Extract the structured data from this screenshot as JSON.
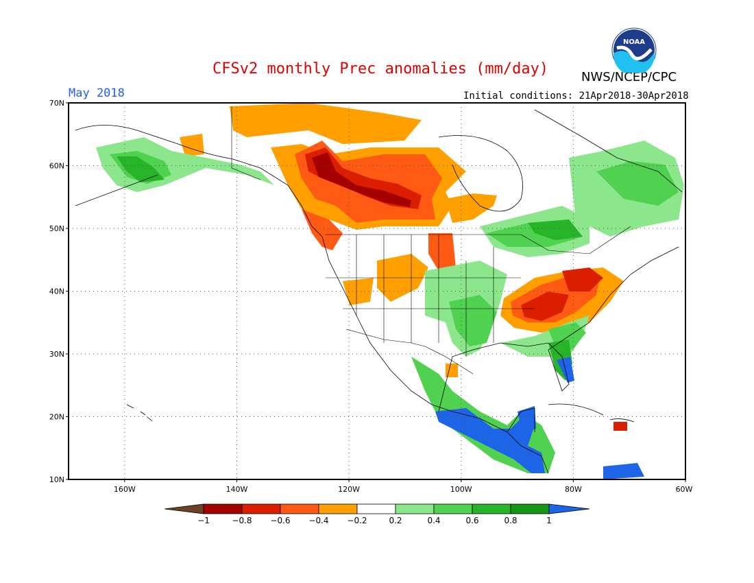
{
  "header": {
    "title": "CFSv2 monthly Prec anomalies (mm/day)",
    "period": "May 2018",
    "initial_conditions": "Initial conditions: 21Apr2018-30Apr2018",
    "agency": "NWS/NCEP/CPC",
    "logo_text": "NOAA"
  },
  "axes": {
    "lat_labels": [
      "70N",
      "60N",
      "50N",
      "40N",
      "30N",
      "20N",
      "10N"
    ],
    "lon_labels": [
      "160W",
      "140W",
      "120W",
      "100W",
      "80W",
      "60W"
    ]
  },
  "colorbar": {
    "labels": [
      "−1",
      "−0.8",
      "−0.6",
      "−0.4",
      "−0.2",
      "0.2",
      "0.4",
      "0.6",
      "0.8",
      "1"
    ],
    "colors": {
      "lt_neg1": "#6b4226",
      "neg1_neg08": "#a50000",
      "neg08_neg06": "#dc1e00",
      "neg06_neg04": "#ff5a14",
      "neg04_neg02": "#ffa000",
      "neutral": "#ffffff",
      "p02_p04": "#8ce68c",
      "p04_p06": "#50d250",
      "p06_p08": "#28b428",
      "p08_p1": "#149614",
      "gt_1": "#1e64e6"
    }
  },
  "map": {
    "extent": {
      "lon_min": -170,
      "lon_max": -60,
      "lat_min": 10,
      "lat_max": 70
    },
    "anomaly_regions": [
      {
        "region": "Western Canada / Alberta-Saskatchewan",
        "anomaly_mm_day": -0.9
      },
      {
        "region": "Northern British Columbia",
        "anomaly_mm_day": -0.7
      },
      {
        "region": "Yukon / Northwest Territories",
        "anomaly_mm_day": -0.3
      },
      {
        "region": "Ohio Valley / Tennessee",
        "anomaly_mm_day": -0.7
      },
      {
        "region": "Mid-Atlantic / Pennsylvania",
        "anomaly_mm_day": -0.6
      },
      {
        "region": "Pacific Northwest coast",
        "anomaly_mm_day": -0.5
      },
      {
        "region": "Intermountain West",
        "anomaly_mm_day": -0.3
      },
      {
        "region": "Alaska Peninsula",
        "anomaly_mm_day": 0.6
      },
      {
        "region": "Quebec / Labrador",
        "anomaly_mm_day": 0.4
      },
      {
        "region": "Great Lakes / Ontario",
        "anomaly_mm_day": 0.5
      },
      {
        "region": "Central Plains",
        "anomaly_mm_day": 0.5
      },
      {
        "region": "Florida",
        "anomaly_mm_day": 1.0
      },
      {
        "region": "Southern Mexico",
        "anomaly_mm_day": 1.2
      },
      {
        "region": "Central America",
        "anomaly_mm_day": 1.2
      }
    ]
  }
}
